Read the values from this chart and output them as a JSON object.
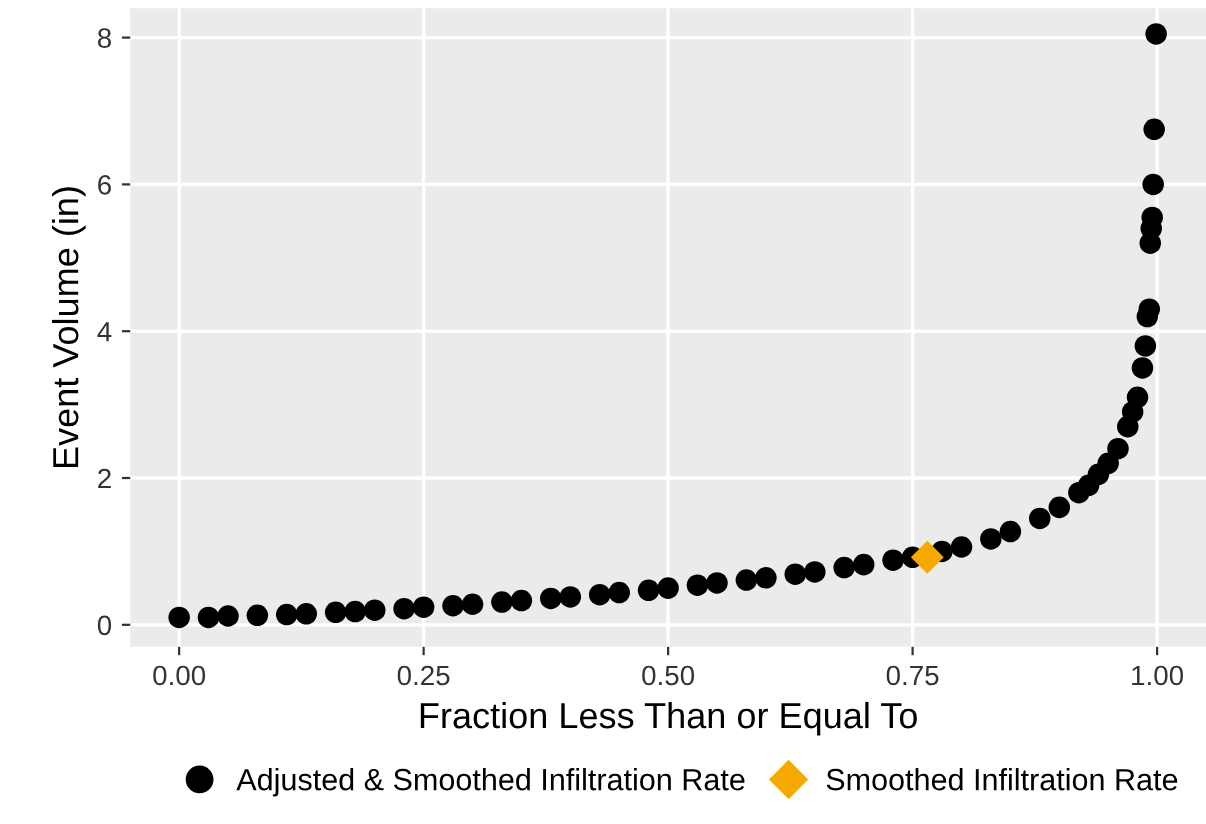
{
  "chart_data": {
    "type": "scatter",
    "xlabel": "Fraction Less Than or Equal To",
    "ylabel": "Event Volume (in)",
    "xlim": [
      -0.05,
      1.05
    ],
    "ylim": [
      -0.3,
      8.4
    ],
    "xticks": [
      {
        "value": 0,
        "label": "0.00"
      },
      {
        "value": 0.25,
        "label": "0.25"
      },
      {
        "value": 0.5,
        "label": "0.50"
      },
      {
        "value": 0.75,
        "label": "0.75"
      },
      {
        "value": 1,
        "label": "1.00"
      }
    ],
    "yticks": [
      0,
      2,
      4,
      6,
      8
    ],
    "grid": true,
    "legend": "bottom",
    "series": [
      {
        "name": "Adjusted & Smoothed Infiltration Rate",
        "color": "#000000",
        "marker": "circle",
        "x": [
          0,
          0.03,
          0.05,
          0.08,
          0.11,
          0.13,
          0.16,
          0.18,
          0.2,
          0.23,
          0.25,
          0.28,
          0.3,
          0.33,
          0.35,
          0.38,
          0.4,
          0.43,
          0.45,
          0.48,
          0.5,
          0.53,
          0.55,
          0.58,
          0.6,
          0.63,
          0.65,
          0.68,
          0.7,
          0.73,
          0.75,
          0.78,
          0.8,
          0.83,
          0.85,
          0.88,
          0.9,
          0.92,
          0.93,
          0.94,
          0.95,
          0.96,
          0.97,
          0.975,
          0.98,
          0.985,
          0.988,
          0.99,
          0.992,
          0.993,
          0.994,
          0.995,
          0.996,
          0.997,
          0.999
        ],
        "values": [
          0.1,
          0.1,
          0.12,
          0.13,
          0.14,
          0.15,
          0.17,
          0.18,
          0.2,
          0.22,
          0.24,
          0.26,
          0.28,
          0.31,
          0.33,
          0.36,
          0.38,
          0.41,
          0.44,
          0.47,
          0.5,
          0.54,
          0.57,
          0.61,
          0.64,
          0.69,
          0.72,
          0.78,
          0.82,
          0.88,
          0.92,
          1.0,
          1.06,
          1.17,
          1.27,
          1.45,
          1.6,
          1.8,
          1.9,
          2.05,
          2.2,
          2.4,
          2.7,
          2.9,
          3.1,
          3.5,
          3.8,
          4.2,
          4.3,
          5.2,
          5.4,
          5.55,
          6.0,
          6.75,
          8.05
        ]
      },
      {
        "name": "Smoothed Infiltration Rate",
        "color": "#f5a900",
        "marker": "diamond",
        "x": [
          0.765
        ],
        "values": [
          0.92
        ]
      }
    ]
  }
}
